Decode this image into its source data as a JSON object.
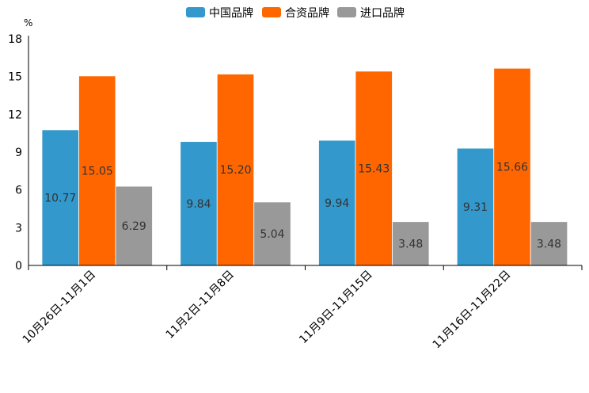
{
  "chart_data": {
    "type": "bar",
    "title": "",
    "xlabel": "",
    "ylabel": "%",
    "ylim": [
      0,
      18
    ],
    "yticks": [
      0,
      3,
      6,
      9,
      12,
      15,
      18
    ],
    "grid": false,
    "legend_position": "top-center",
    "categories": [
      "10月26日-11月1日",
      "11月2日-11月8日",
      "11月9日-11月15日",
      "11月16日-11月22日"
    ],
    "series": [
      {
        "name": "中国品牌",
        "color": "#3399CC",
        "values": [
          10.77,
          9.84,
          9.94,
          9.31
        ]
      },
      {
        "name": "合资品牌",
        "color": "#FF6600",
        "values": [
          15.05,
          15.2,
          15.43,
          15.66
        ]
      },
      {
        "name": "进口品牌",
        "color": "#999999",
        "values": [
          6.29,
          5.04,
          3.48,
          3.48
        ]
      }
    ],
    "value_labels": [
      [
        "10.77",
        "9.84",
        "9.94",
        "9.31"
      ],
      [
        "15.05",
        "15.20",
        "15.43",
        "15.66"
      ],
      [
        "6.29",
        "5.04",
        "3.48",
        "3.48"
      ]
    ]
  }
}
